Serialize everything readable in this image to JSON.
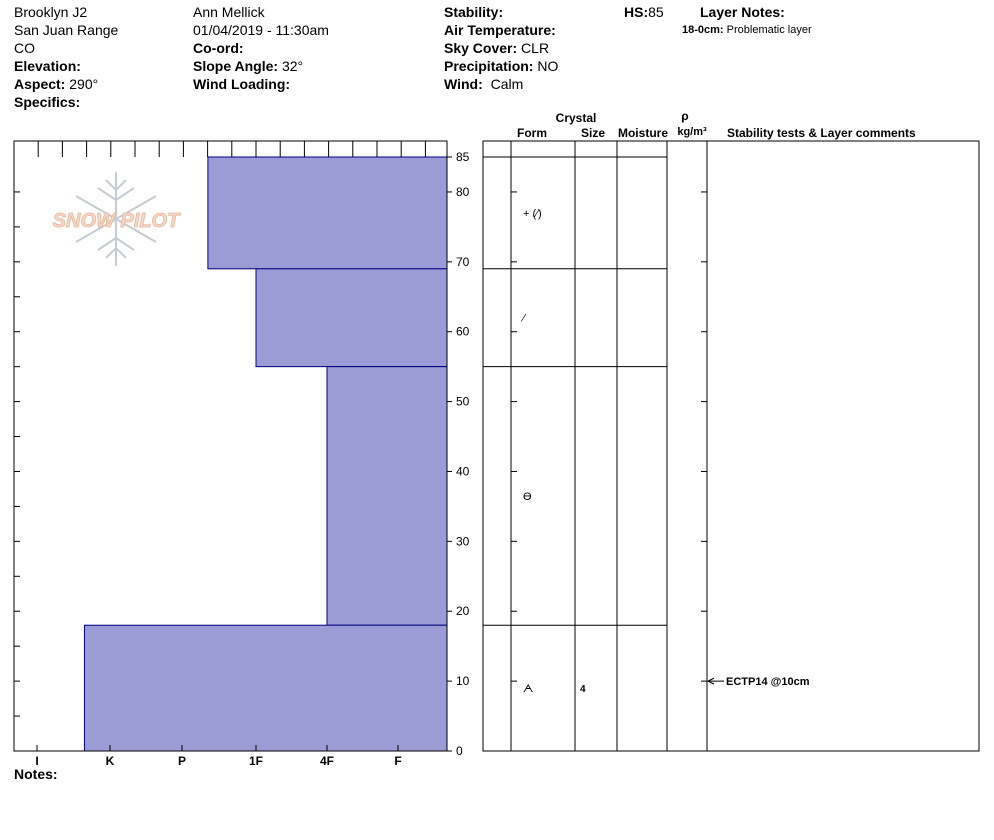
{
  "header": {
    "location": "Brooklyn J2",
    "range": "San Juan Range",
    "state": "CO",
    "elevation_label": "Elevation:",
    "aspect_label": "Aspect:",
    "aspect_value": "290°",
    "specifics_label": "Specifics:",
    "observer": "Ann Mellick",
    "datetime": "01/04/2019 - 11:30am",
    "coord_label": "Co-ord:",
    "slope_label": "Slope Angle:",
    "slope_value": "32°",
    "wind_loading_label": "Wind Loading:",
    "stability_label": "Stability:",
    "air_temp_label": "Air Temperature:",
    "sky_label": "Sky Cover:",
    "sky_value": "CLR",
    "precip_label": "Precipitation:",
    "precip_value": "NO",
    "wind_label": "Wind:",
    "wind_value": "Calm",
    "hs_label": "HS:",
    "hs_value": "85",
    "layer_notes_label": "Layer Notes:",
    "layer_note_range": "18-0cm:",
    "layer_note_text": "Problematic layer"
  },
  "logo": {
    "text": "SNOW PILOT"
  },
  "notes_label": "Notes:",
  "table_headers": {
    "crystal": "Crystal",
    "form": "Form",
    "size": "Size",
    "moisture": "Moisture",
    "rho": "ρ",
    "density_unit": "kg/m³",
    "stability_comments": "Stability tests & Layer comments"
  },
  "colors": {
    "hardness_fill": "#9b9bd6",
    "hardness_stroke": "#000080"
  },
  "chart_data": {
    "type": "bar",
    "orientation": "horizontal",
    "y_unit": "cm",
    "ylim": [
      0,
      85
    ],
    "yticks": [
      0,
      10,
      20,
      30,
      40,
      50,
      60,
      70,
      80,
      85
    ],
    "hardness_scale": [
      "I",
      "K",
      "P",
      "1F",
      "4F",
      "F"
    ],
    "layers": [
      {
        "top": 85,
        "bottom": 69,
        "hardness_index": 2.35,
        "form": "+ (⁄)",
        "size": ""
      },
      {
        "top": 69,
        "bottom": 55,
        "hardness_index": 3.0,
        "form": "⁄",
        "size": ""
      },
      {
        "top": 55,
        "bottom": 18,
        "hardness_index": 4.0,
        "form": "ϴ",
        "size": ""
      },
      {
        "top": 18,
        "bottom": 0,
        "hardness_index": 0.65,
        "form": "ᗅ",
        "size": "4"
      }
    ],
    "stability_tests": [
      {
        "depth": 10,
        "label": "ECTP14 @10cm"
      }
    ]
  }
}
